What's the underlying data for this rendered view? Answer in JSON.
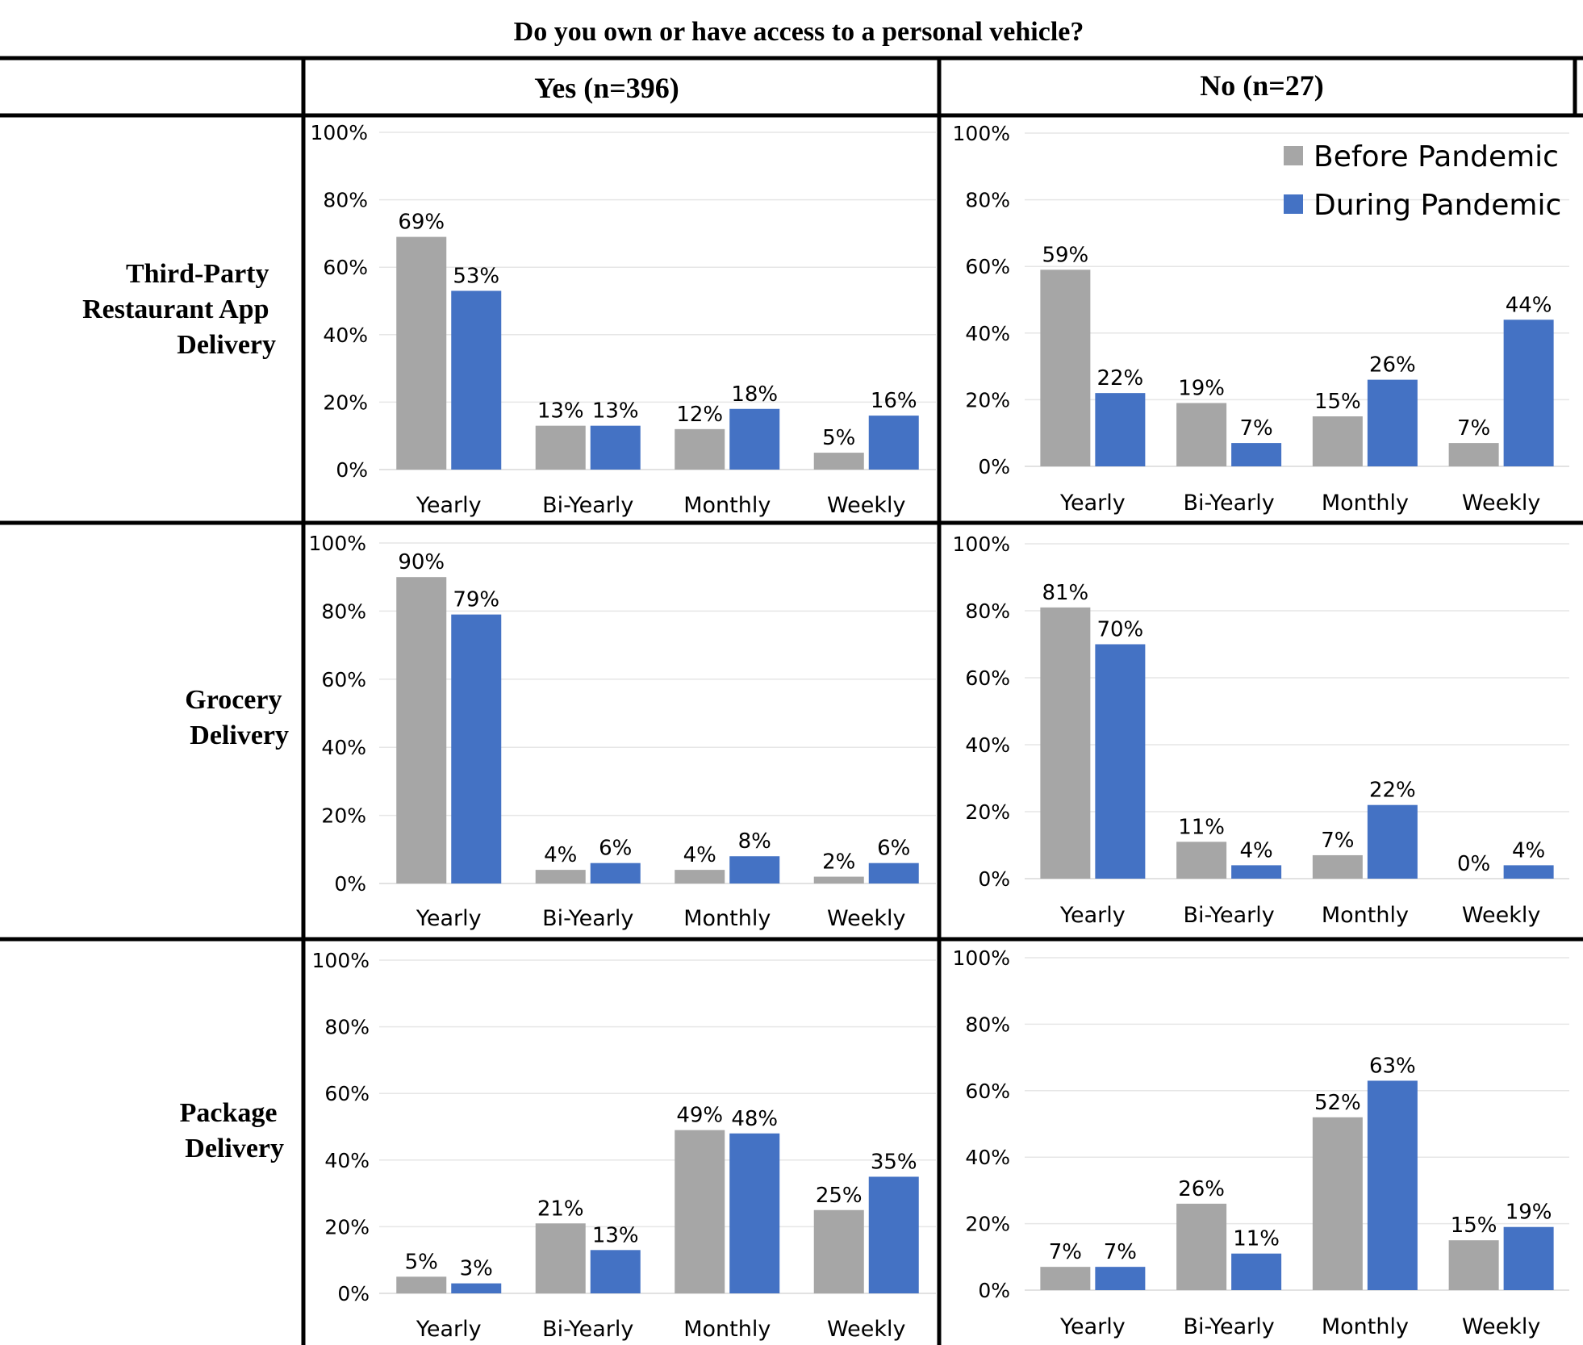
{
  "figure_title": "Do you own or have access to a personal vehicle?",
  "columns": [
    "Yes (n=396)",
    "No (n=27)"
  ],
  "rows": [
    [
      "Third-Party",
      "Restaurant App",
      "Delivery"
    ],
    [
      "Grocery",
      "Delivery"
    ],
    [
      "Package",
      "Delivery"
    ]
  ],
  "legend": [
    {
      "label": "Before Pandemic",
      "color": "#a6a6a6"
    },
    {
      "label": "During Pandemic",
      "color": "#4472c4"
    }
  ],
  "chart_data": [
    {
      "type": "bar",
      "row": "Third-Party Restaurant App Delivery",
      "column": "Yes (n=396)",
      "categories": [
        "Yearly",
        "Bi-Yearly",
        "Monthly",
        "Weekly"
      ],
      "series": [
        {
          "name": "Before Pandemic",
          "values": [
            69,
            13,
            12,
            5
          ]
        },
        {
          "name": "During Pandemic",
          "values": [
            53,
            13,
            18,
            16
          ]
        }
      ],
      "ylim": [
        0,
        100
      ],
      "yticks": [
        "0%",
        "20%",
        "40%",
        "60%",
        "80%",
        "100%"
      ]
    },
    {
      "type": "bar",
      "row": "Third-Party Restaurant App Delivery",
      "column": "No (n=27)",
      "categories": [
        "Yearly",
        "Bi-Yearly",
        "Monthly",
        "Weekly"
      ],
      "series": [
        {
          "name": "Before Pandemic",
          "values": [
            59,
            19,
            15,
            7
          ]
        },
        {
          "name": "During Pandemic",
          "values": [
            22,
            7,
            26,
            44
          ]
        }
      ],
      "ylim": [
        0,
        100
      ],
      "yticks": [
        "0%",
        "20%",
        "40%",
        "60%",
        "80%",
        "100%"
      ]
    },
    {
      "type": "bar",
      "row": "Grocery Delivery",
      "column": "Yes (n=396)",
      "categories": [
        "Yearly",
        "Bi-Yearly",
        "Monthly",
        "Weekly"
      ],
      "series": [
        {
          "name": "Before Pandemic",
          "values": [
            90,
            4,
            4,
            2
          ]
        },
        {
          "name": "During Pandemic",
          "values": [
            79,
            6,
            8,
            6
          ]
        }
      ],
      "ylim": [
        0,
        100
      ],
      "yticks": [
        "0%",
        "20%",
        "40%",
        "60%",
        "80%",
        "100%"
      ]
    },
    {
      "type": "bar",
      "row": "Grocery Delivery",
      "column": "No (n=27)",
      "categories": [
        "Yearly",
        "Bi-Yearly",
        "Monthly",
        "Weekly"
      ],
      "series": [
        {
          "name": "Before Pandemic",
          "values": [
            81,
            11,
            7,
            0
          ]
        },
        {
          "name": "During Pandemic",
          "values": [
            70,
            4,
            22,
            4
          ]
        }
      ],
      "ylim": [
        0,
        100
      ],
      "yticks": [
        "0%",
        "20%",
        "40%",
        "60%",
        "80%",
        "100%"
      ]
    },
    {
      "type": "bar",
      "row": "Package Delivery",
      "column": "Yes (n=396)",
      "categories": [
        "Yearly",
        "Bi-Yearly",
        "Monthly",
        "Weekly"
      ],
      "series": [
        {
          "name": "Before Pandemic",
          "values": [
            5,
            21,
            49,
            25
          ]
        },
        {
          "name": "During Pandemic",
          "values": [
            3,
            13,
            48,
            35
          ]
        }
      ],
      "ylim": [
        0,
        100
      ],
      "yticks": [
        "0%",
        "20%",
        "40%",
        "60%",
        "80%",
        "100%"
      ]
    },
    {
      "type": "bar",
      "row": "Package Delivery",
      "column": "No (n=27)",
      "categories": [
        "Yearly",
        "Bi-Yearly",
        "Monthly",
        "Weekly"
      ],
      "series": [
        {
          "name": "Before Pandemic",
          "values": [
            7,
            26,
            52,
            15
          ]
        },
        {
          "name": "During Pandemic",
          "values": [
            7,
            11,
            63,
            19
          ]
        }
      ],
      "ylim": [
        0,
        100
      ],
      "yticks": [
        "0%",
        "20%",
        "40%",
        "60%",
        "80%",
        "100%"
      ]
    }
  ]
}
